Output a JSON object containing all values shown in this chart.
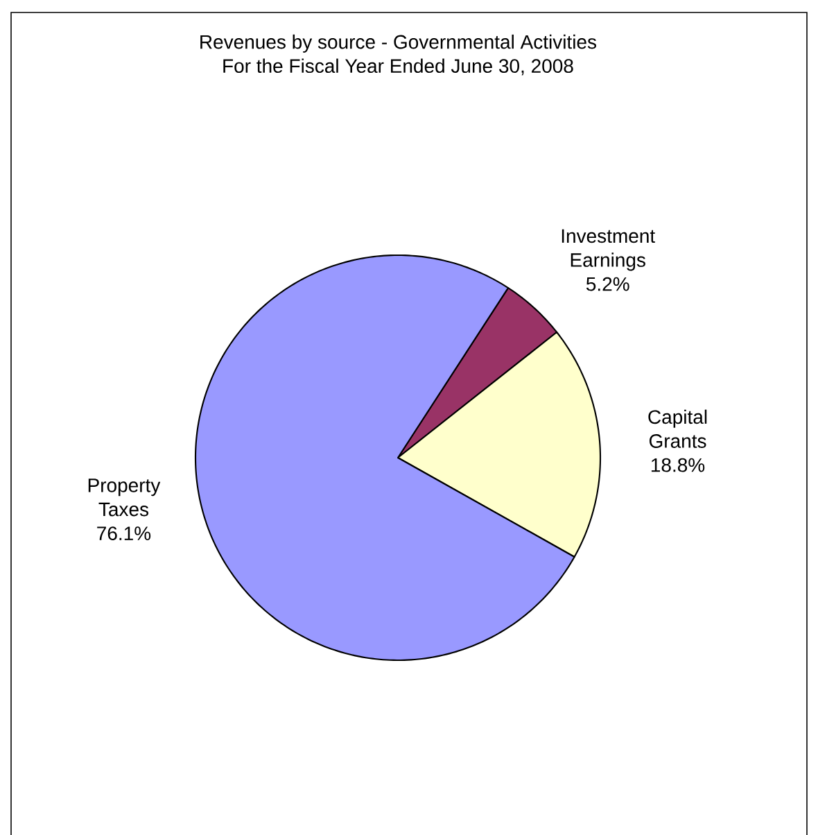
{
  "chart_data": {
    "type": "pie",
    "title": "Revenues by source - Governmental Activities",
    "subtitle": "For the Fiscal Year Ended June 30, 2008",
    "categories": [
      "Investment Earnings",
      "Capital Grants",
      "Property Taxes"
    ],
    "values": [
      5.2,
      18.8,
      76.1
    ],
    "value_labels": [
      "5.2%",
      "18.8%",
      "76.1%"
    ],
    "colors": [
      "#993366",
      "#ffffcc",
      "#9999ff"
    ]
  }
}
